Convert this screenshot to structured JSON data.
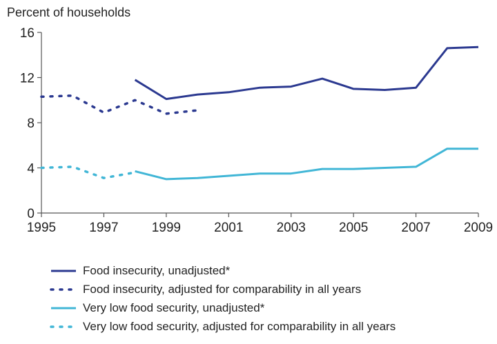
{
  "chart_data": {
    "type": "line",
    "ylabel": "Percent of households",
    "xlim": [
      1995,
      2009
    ],
    "ylim": [
      0,
      16
    ],
    "xticks": [
      1995,
      1997,
      1999,
      2001,
      2003,
      2005,
      2007,
      2009
    ],
    "yticks": [
      0,
      4,
      8,
      12,
      16
    ],
    "grid": false,
    "legend_position": "bottom",
    "series": [
      {
        "name": "Food insecurity, unadjusted*",
        "style": "solid",
        "color": "#2b3990",
        "x": [
          1998,
          1999,
          2000,
          2001,
          2002,
          2003,
          2004,
          2005,
          2006,
          2007,
          2008,
          2009
        ],
        "y": [
          11.8,
          10.1,
          10.5,
          10.7,
          11.1,
          11.2,
          11.9,
          11.0,
          10.9,
          11.1,
          14.6,
          14.7
        ]
      },
      {
        "name": "Food insecurity, adjusted for comparability in all years",
        "style": "dotted",
        "color": "#2b3990",
        "x": [
          1995,
          1996,
          1997,
          1998,
          1999,
          2000
        ],
        "y": [
          10.3,
          10.4,
          8.9,
          10.0,
          8.8,
          9.1
        ]
      },
      {
        "name": "Very low food security, unadjusted*",
        "style": "solid",
        "color": "#41b6d6",
        "x": [
          1998,
          1999,
          2000,
          2001,
          2002,
          2003,
          2004,
          2005,
          2006,
          2007,
          2008,
          2009
        ],
        "y": [
          3.7,
          3.0,
          3.1,
          3.3,
          3.5,
          3.5,
          3.9,
          3.9,
          4.0,
          4.1,
          5.7,
          5.7
        ]
      },
      {
        "name": "Very low food security, adjusted for comparability in all years",
        "style": "dotted",
        "color": "#41b6d6",
        "x": [
          1995,
          1996,
          1997,
          1998
        ],
        "y": [
          4.0,
          4.1,
          3.1,
          3.6
        ]
      }
    ]
  }
}
